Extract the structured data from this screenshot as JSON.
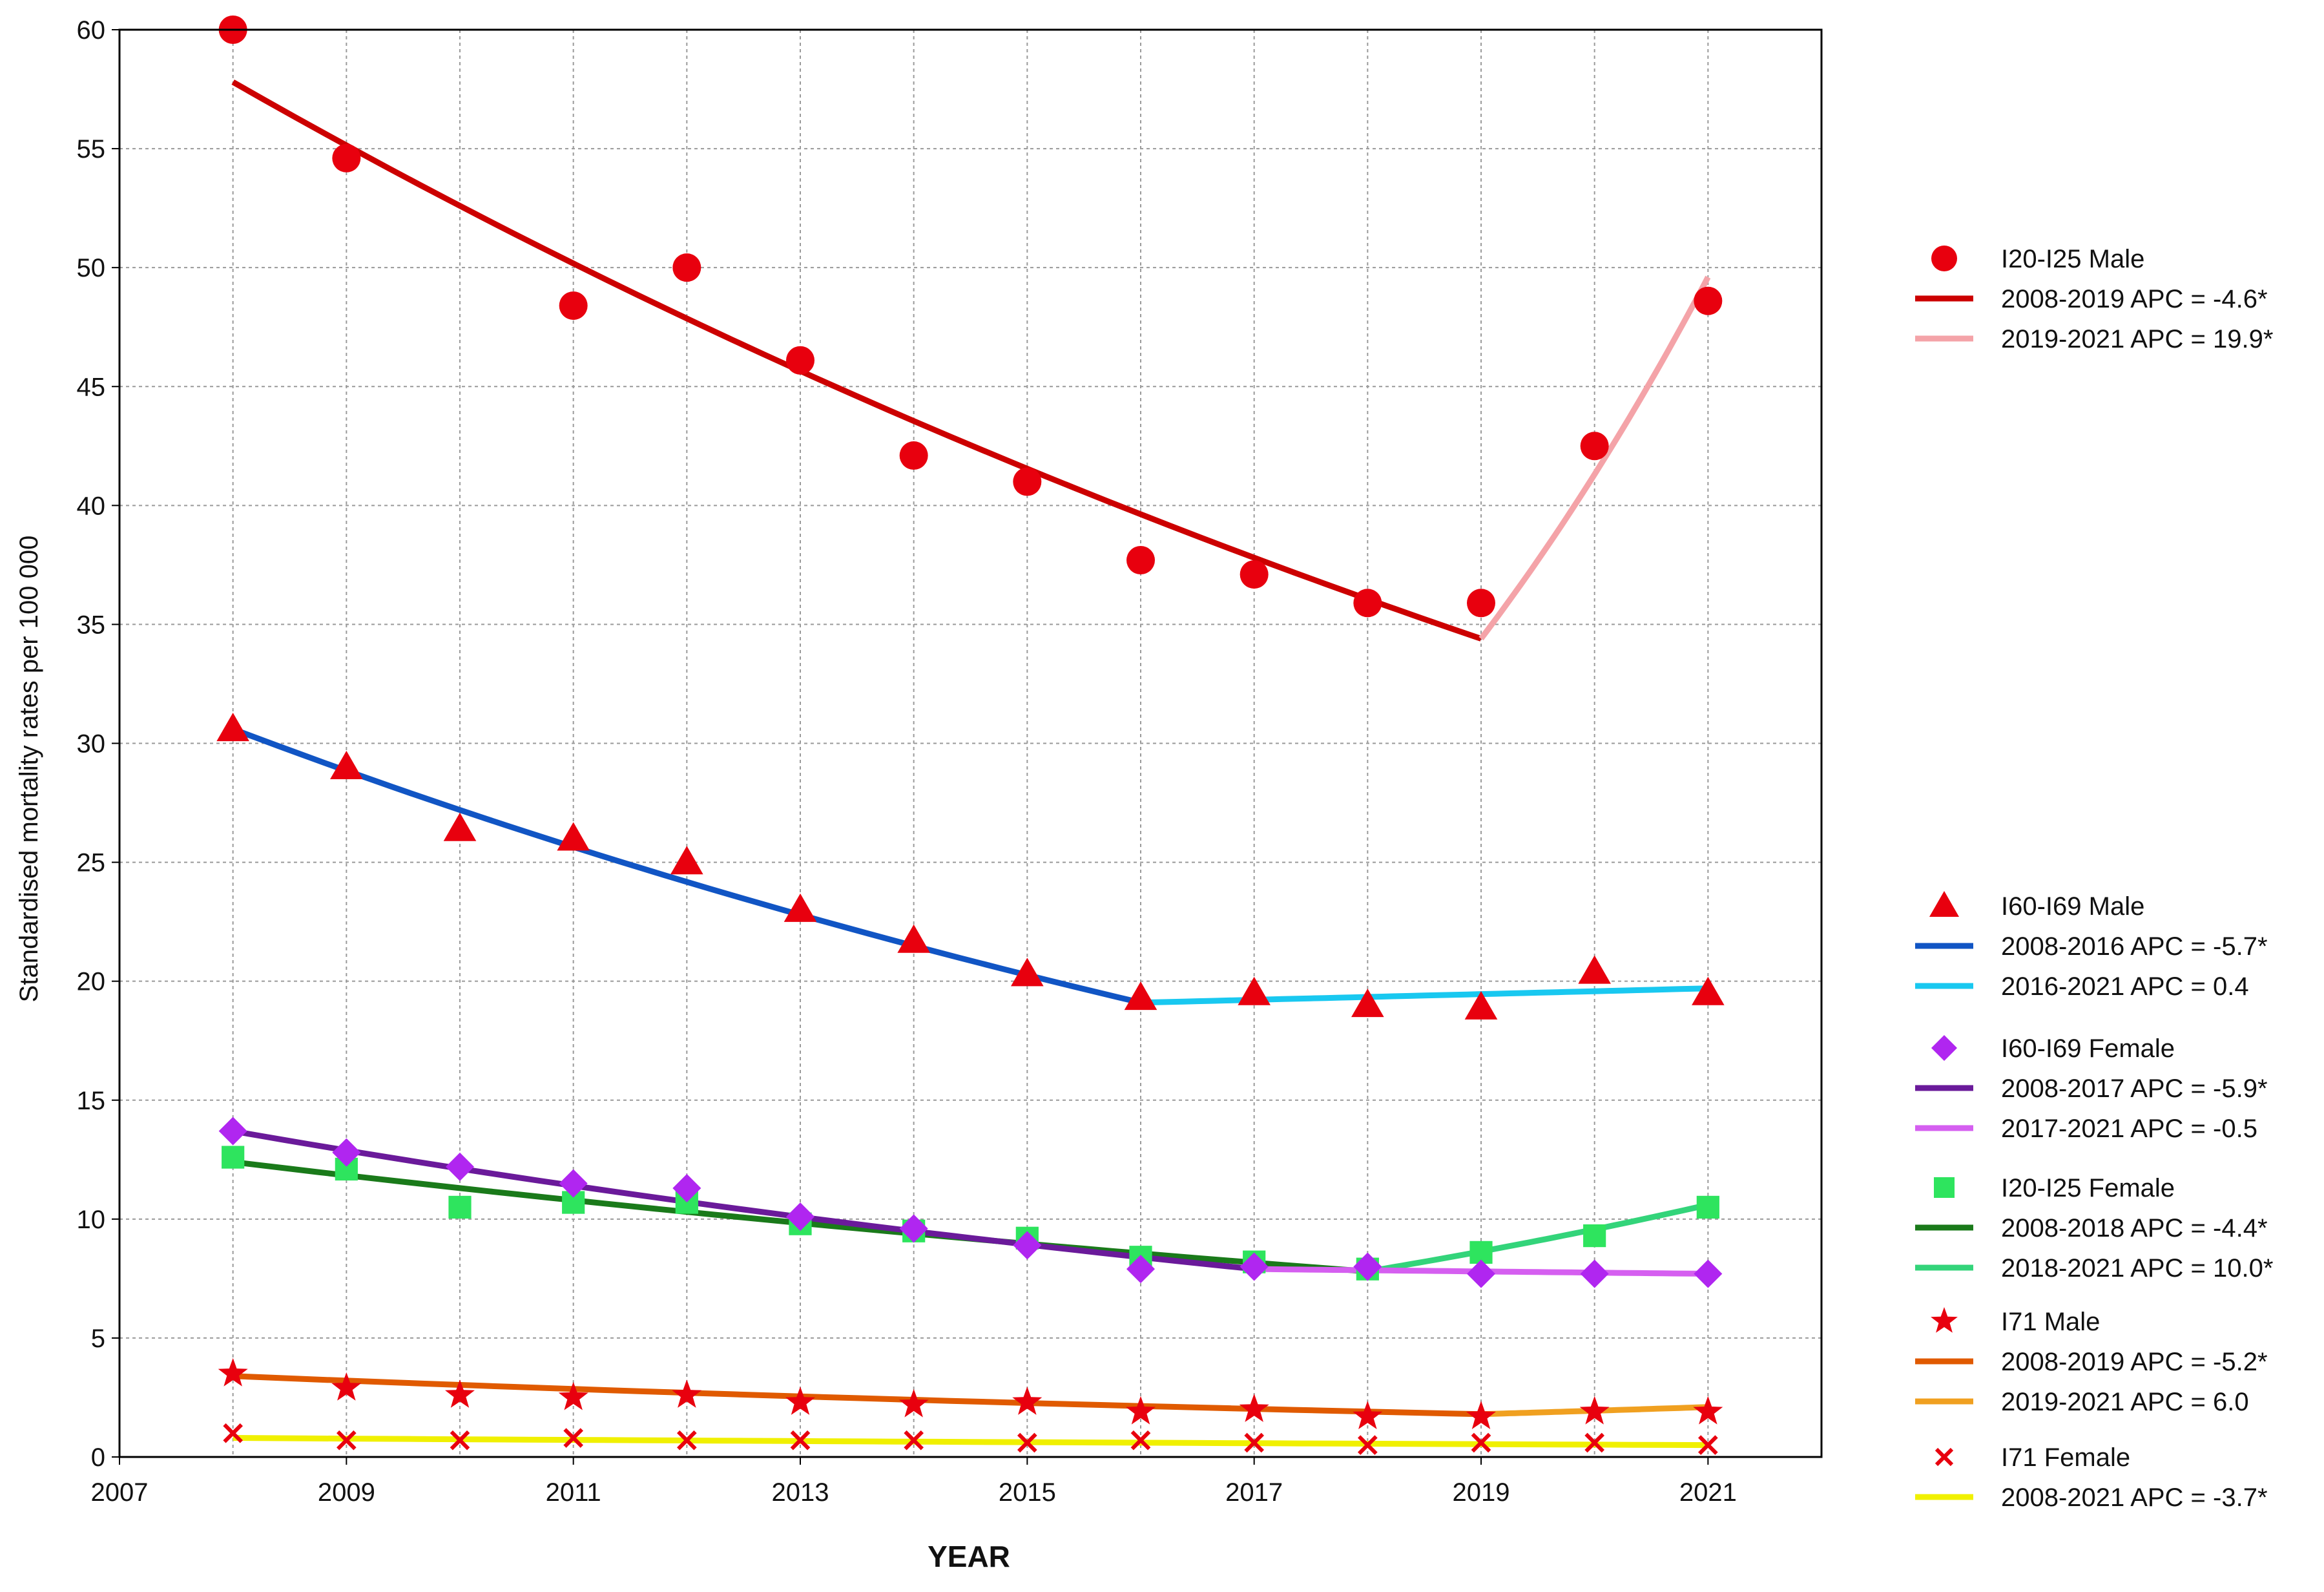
{
  "chart_data": {
    "type": "line",
    "title": "",
    "xlabel": "YEAR",
    "ylabel": "Standardised mortality rates per 100 000",
    "xlim": [
      2007,
      2022
    ],
    "ylim": [
      0,
      60
    ],
    "x_ticks": [
      "2007",
      "2009",
      "2011",
      "2013",
      "2015",
      "2017",
      "2019",
      "2021"
    ],
    "y_ticks": [
      "0",
      "5",
      "10",
      "15",
      "20",
      "25",
      "30",
      "35",
      "40",
      "45",
      "50",
      "55",
      "60"
    ],
    "grid": true,
    "legend_position": "right",
    "x": [
      2008,
      2009,
      2010,
      2011,
      2012,
      2013,
      2014,
      2015,
      2016,
      2017,
      2018,
      2019,
      2020,
      2021
    ],
    "series": [
      {
        "name": "I20-I25 Male",
        "marker": "circle",
        "color": "#e8000e",
        "values": [
          60.0,
          54.6,
          null,
          48.4,
          50.0,
          46.1,
          42.1,
          41.0,
          37.7,
          37.1,
          35.9,
          35.9,
          42.5,
          48.6
        ],
        "trends": [
          {
            "label": "2008-2019 APC = -4.6*",
            "color": "#cc0000",
            "from": 2008,
            "to": 2019,
            "start": 57.8,
            "end": 34.4
          },
          {
            "label": "2019-2021 APC = 19.9*",
            "color": "#f4a3a8",
            "from": 2019,
            "to": 2021,
            "start": 34.4,
            "end": 49.6
          }
        ]
      },
      {
        "name": "I60-I69 Male",
        "marker": "triangle",
        "color": "#e8000e",
        "values": [
          30.6,
          29.0,
          26.4,
          26.0,
          25.0,
          23.0,
          21.7,
          20.3,
          19.3,
          19.5,
          19.0,
          18.9,
          20.4,
          19.5
        ],
        "trends": [
          {
            "label": "2008-2016 APC = -5.7*",
            "color": "#1155c4",
            "from": 2008,
            "to": 2016,
            "start": 30.6,
            "end": 19.1
          },
          {
            "label": "2016-2021 APC = 0.4",
            "color": "#19c8f0",
            "from": 2016,
            "to": 2021,
            "start": 19.1,
            "end": 19.7
          }
        ]
      },
      {
        "name": "I60-I69 Female",
        "marker": "diamond",
        "color": "#b026f0",
        "values": [
          13.7,
          12.8,
          12.2,
          11.5,
          11.3,
          10.1,
          9.6,
          8.9,
          7.9,
          8.0,
          8.0,
          7.7,
          7.7,
          7.7
        ],
        "trends": [
          {
            "label": "2008-2017 APC = -5.9*",
            "color": "#6a1a9a",
            "from": 2008,
            "to": 2017,
            "start": 13.7,
            "end": 7.9
          },
          {
            "label": "2017-2021 APC = -0.5",
            "color": "#d55ff0",
            "from": 2017,
            "to": 2021,
            "start": 7.9,
            "end": 7.7
          }
        ]
      },
      {
        "name": "I20-I25 Female",
        "marker": "square",
        "color": "#2ee45e",
        "values": [
          12.6,
          12.1,
          10.5,
          10.7,
          10.7,
          9.8,
          9.5,
          9.2,
          8.4,
          8.2,
          7.9,
          8.6,
          9.3,
          10.5
        ],
        "trends": [
          {
            "label": "2008-2018 APC = -4.4*",
            "color": "#1a7a1a",
            "from": 2008,
            "to": 2018,
            "start": 12.4,
            "end": 7.8
          },
          {
            "label": "2018-2021 APC = 10.0*",
            "color": "#33d47a",
            "from": 2018,
            "to": 2021,
            "start": 7.8,
            "end": 10.6
          }
        ]
      },
      {
        "name": "I71 Male",
        "marker": "star",
        "color": "#e8000e",
        "values": [
          3.5,
          2.9,
          2.6,
          2.5,
          2.6,
          2.3,
          2.2,
          2.3,
          1.9,
          2.0,
          1.7,
          1.7,
          1.9,
          1.9
        ],
        "trends": [
          {
            "label": "2008-2019 APC = -5.2*",
            "color": "#e05a00",
            "from": 2008,
            "to": 2019,
            "start": 3.4,
            "end": 1.8
          },
          {
            "label": "2019-2021 APC = 6.0",
            "color": "#f0a020",
            "from": 2019,
            "to": 2021,
            "start": 1.8,
            "end": 2.1
          }
        ]
      },
      {
        "name": "I71 Female",
        "marker": "x",
        "color": "#e8000e",
        "values": [
          1.0,
          0.7,
          0.7,
          0.8,
          0.7,
          0.7,
          0.7,
          0.6,
          0.7,
          0.6,
          0.5,
          0.6,
          0.6,
          0.5
        ],
        "trends": [
          {
            "label": "2008-2021 APC = -3.7*",
            "color": "#f0f000",
            "from": 2008,
            "to": 2021,
            "start": 0.8,
            "end": 0.5
          }
        ]
      }
    ]
  }
}
